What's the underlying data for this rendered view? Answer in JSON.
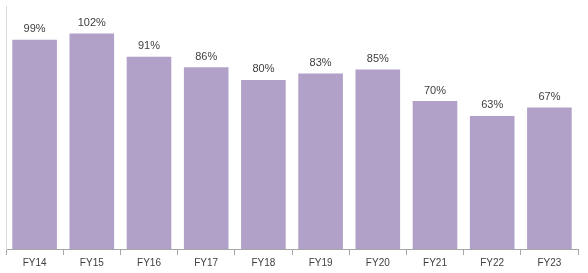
{
  "chart_data": {
    "type": "bar",
    "categories": [
      "FY14",
      "FY15",
      "FY16",
      "FY17",
      "FY18",
      "FY19",
      "FY20",
      "FY21",
      "FY22",
      "FY23"
    ],
    "values": [
      99,
      102,
      91,
      86,
      80,
      83,
      85,
      70,
      63,
      67
    ],
    "value_labels": [
      "99%",
      "102%",
      "91%",
      "86%",
      "80%",
      "83%",
      "85%",
      "70%",
      "63%",
      "67%"
    ],
    "color": "#b1a0c7",
    "ylim": [
      0,
      115
    ],
    "grid": false,
    "data_labels": true,
    "tick_labels": "x"
  }
}
